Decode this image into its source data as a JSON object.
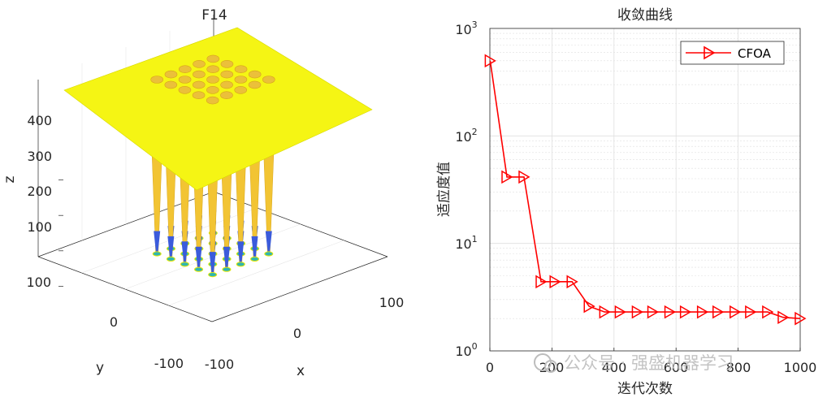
{
  "colors": {
    "surface_top": "#f5f514",
    "surface_side": "#f2c433",
    "spike_blue": "#3b5bdb",
    "line": "#ff0000",
    "axis": "#262626",
    "grid": "#dfdfdf",
    "watermark": "#bdbdbd"
  },
  "chart_data": [
    {
      "type": "surface3d",
      "title": "F14",
      "xlabel": "x",
      "ylabel": "y",
      "zlabel": "z",
      "x_ticks": [
        "-100",
        "0",
        "100"
      ],
      "y_ticks": [
        "-100",
        "0",
        "100"
      ],
      "z_ticks": [
        "100",
        "200",
        "300",
        "400"
      ],
      "xlim": [
        -100,
        100
      ],
      "ylim": [
        -100,
        100
      ],
      "zlim": [
        0,
        500
      ],
      "grid": "5x5 minima at -32,-16,0,16,32",
      "minima_coords": [
        -32,
        -16,
        0,
        16,
        32
      ]
    },
    {
      "type": "line",
      "title": "收敛曲线",
      "xlabel": "迭代次数",
      "ylabel": "适应度值",
      "yscale": "log",
      "xlim": [
        0,
        1000
      ],
      "ylim": [
        1,
        1000
      ],
      "x_ticks": [
        "0",
        "200",
        "400",
        "600",
        "800",
        "1000"
      ],
      "y_ticks": [
        {
          "base": "10",
          "exp": "0"
        },
        {
          "base": "10",
          "exp": "1"
        },
        {
          "base": "10",
          "exp": "2"
        },
        {
          "base": "10",
          "exp": "3"
        }
      ],
      "grid": true,
      "legend_position": "top-right",
      "series": [
        {
          "name": "CFOA",
          "marker": "triangle-right",
          "x": [
            1,
            55,
            110,
            165,
            210,
            265,
            320,
            370,
            420,
            475,
            525,
            580,
            630,
            685,
            735,
            790,
            840,
            895,
            945,
            1000
          ],
          "values": [
            500,
            41.5,
            41.5,
            4.4,
            4.4,
            4.4,
            2.6,
            2.3,
            2.3,
            2.3,
            2.3,
            2.3,
            2.3,
            2.3,
            2.3,
            2.3,
            2.3,
            2.3,
            2.05,
            2.0
          ]
        }
      ]
    }
  ],
  "watermark": {
    "text": "公众号 · 强盛机器学习"
  }
}
